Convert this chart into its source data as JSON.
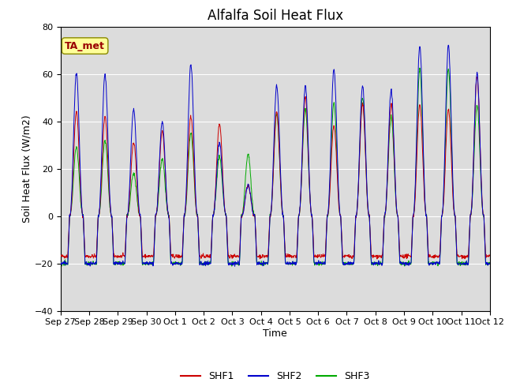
{
  "title": "Alfalfa Soil Heat Flux",
  "xlabel": "Time",
  "ylabel": "Soil Heat Flux (W/m2)",
  "ylim": [
    -40,
    80
  ],
  "xtick_labels": [
    "Sep 27",
    "Sep 28",
    "Sep 29",
    "Sep 30",
    "Oct 1",
    "Oct 2",
    "Oct 3",
    "Oct 4",
    "Oct 5",
    "Oct 6",
    "Oct 7",
    "Oct 8",
    "Oct 9",
    "Oct 10",
    "Oct 11",
    "Oct 12"
  ],
  "legend_labels": [
    "SHF1",
    "SHF2",
    "SHF3"
  ],
  "line_colors": [
    "#cc0000",
    "#0000cc",
    "#00aa00"
  ],
  "annotation_text": "TA_met",
  "annotation_color": "#990000",
  "annotation_bg": "#ffff99",
  "bg_color": "#dcdcdc",
  "title_fontsize": 12,
  "axis_label_fontsize": 9,
  "tick_fontsize": 8,
  "legend_fontsize": 9,
  "n_days": 15,
  "day_peaks_shf1": [
    44,
    42,
    31,
    36,
    42,
    39,
    13,
    44,
    50,
    38,
    47,
    47,
    47,
    45,
    59
  ],
  "day_peaks_shf2": [
    60,
    60,
    45,
    40,
    64,
    31,
    13,
    55,
    55,
    62,
    55,
    53,
    72,
    72,
    60
  ],
  "day_peaks_shf3": [
    29,
    32,
    18,
    24,
    35,
    25,
    26,
    43,
    45,
    48,
    50,
    42,
    62,
    62,
    47
  ],
  "night_base_shf1": -17.0,
  "night_base_shf2": -20.0,
  "night_base_shf3": -20.0,
  "yticks": [
    -40,
    -20,
    0,
    20,
    40,
    60,
    80
  ]
}
